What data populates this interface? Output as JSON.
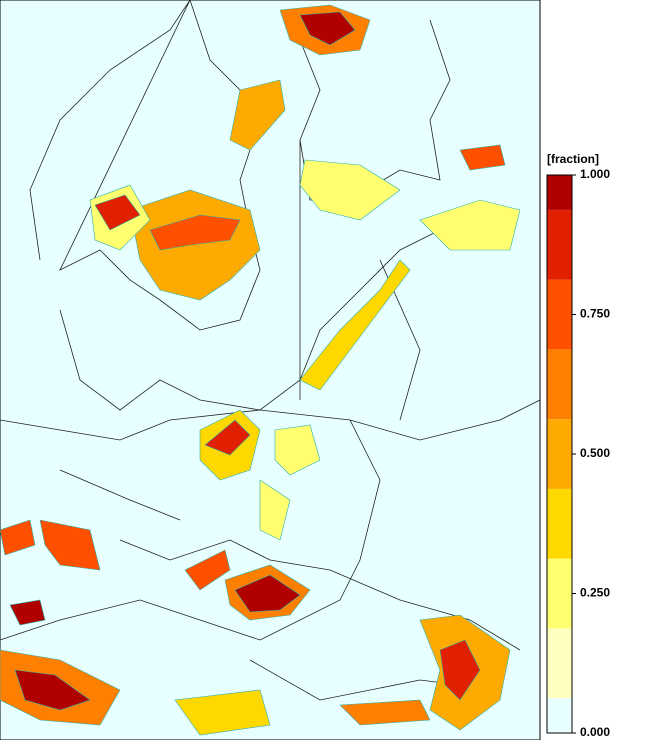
{
  "colorbar": {
    "title": "[fraction]",
    "range": [
      0,
      1
    ],
    "ticks": [
      {
        "value": 0,
        "label": "0.000"
      },
      {
        "value": 0.25,
        "label": "0.250"
      },
      {
        "value": 0.5,
        "label": "0.500"
      },
      {
        "value": 0.75,
        "label": "0.750"
      },
      {
        "value": 1,
        "label": "1.000"
      }
    ],
    "levels": [
      0,
      0.0625,
      0.1875,
      0.3125,
      0.4375,
      0.5625,
      0.6875,
      0.8125,
      0.9375,
      1
    ],
    "colors": [
      "#e8ffff",
      "#ffffc0",
      "#ffff70",
      "#ffd800",
      "#ffaa00",
      "#ff8000",
      "#ff5000",
      "#e02000",
      "#b00000"
    ]
  }
}
